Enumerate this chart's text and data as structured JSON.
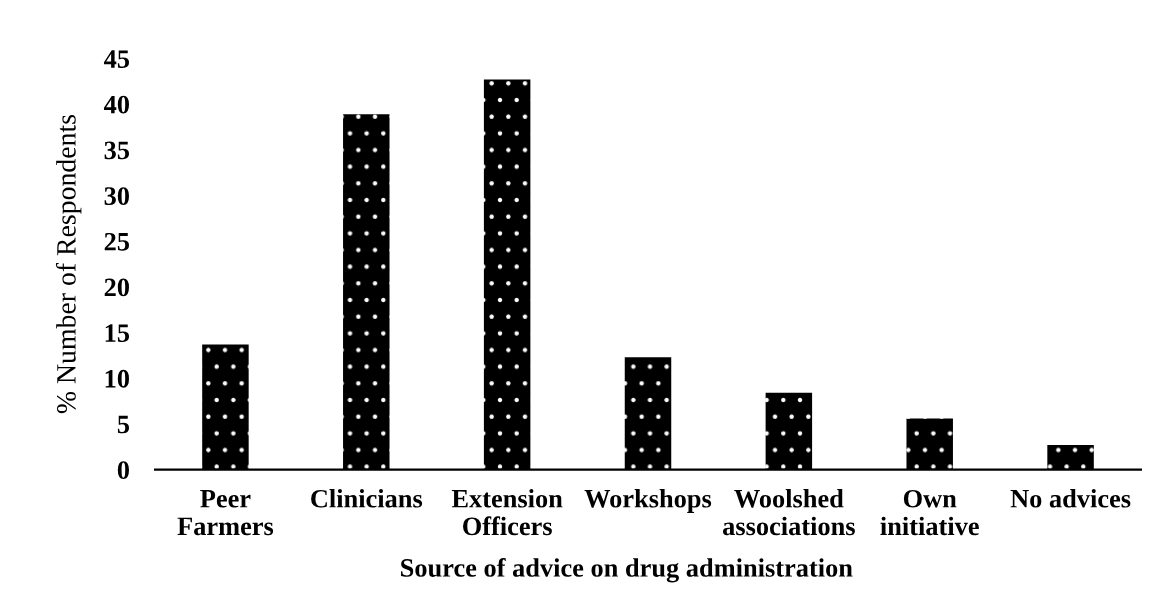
{
  "chart_data": {
    "type": "bar",
    "xlabel": "Source of advice on drug administration",
    "ylabel": "% Number of Respondents",
    "categories": [
      "Peer\nFarmers",
      "Clinicians",
      "Extension\nOfficers",
      "Workshops",
      "Woolshed\nassociations",
      "Own\ninitiative",
      "No advices"
    ],
    "values": [
      13.7,
      38.9,
      42.7,
      12.3,
      8.4,
      5.6,
      2.7
    ],
    "color": "#000000",
    "ylim": [
      0,
      45
    ],
    "yticks": [
      0,
      5,
      10,
      15,
      20,
      25,
      30,
      35,
      40,
      45
    ]
  }
}
